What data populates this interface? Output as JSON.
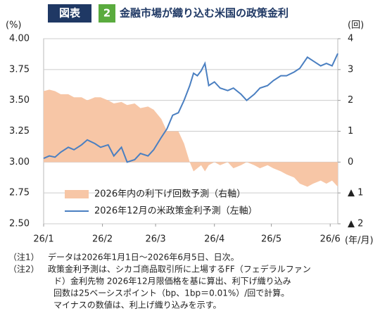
{
  "chart_data": {
    "type": "line",
    "figure_label": "図表",
    "figure_number": "2",
    "title": "金融市場が織り込む米国の政策金利",
    "y_unit": "(%)",
    "y2_unit": "(回)",
    "x_unit": "(年/月)",
    "xlim": [
      0,
      155
    ],
    "xticks": [
      {
        "value": 0,
        "label": "26/1"
      },
      {
        "value": 31,
        "label": "26/2"
      },
      {
        "value": 59,
        "label": "26/3"
      },
      {
        "value": 90,
        "label": "26/4"
      },
      {
        "value": 120,
        "label": "26/5"
      },
      {
        "value": 151,
        "label": "26/6"
      }
    ],
    "ylim": [
      2.5,
      4.0
    ],
    "yticks": [
      {
        "value": 2.5,
        "label": "2.50"
      },
      {
        "value": 2.75,
        "label": "2.75"
      },
      {
        "value": 3.0,
        "label": "3.00"
      },
      {
        "value": 3.25,
        "label": "3.25"
      },
      {
        "value": 3.5,
        "label": "3.50"
      },
      {
        "value": 3.75,
        "label": "3.75"
      },
      {
        "value": 4.0,
        "label": "4.00"
      }
    ],
    "y2lim": [
      -2,
      4
    ],
    "y2ticks": [
      {
        "value": -2,
        "label": "▲ 2"
      },
      {
        "value": -1,
        "label": "▲ 1"
      },
      0,
      1,
      2,
      3,
      4
    ],
    "grid": true,
    "legend": "lower-left",
    "x": [
      0,
      3,
      6,
      9,
      13,
      16,
      20,
      23,
      27,
      30,
      34,
      37,
      41,
      44,
      48,
      51,
      55,
      58,
      62,
      65,
      68,
      71,
      74,
      77,
      79,
      81,
      83,
      85,
      87,
      90,
      93,
      97,
      100,
      104,
      107,
      111,
      114,
      118,
      121,
      125,
      128,
      132,
      135,
      139,
      142,
      146,
      149,
      152,
      155
    ],
    "series": [
      {
        "name": "2026年内の利下げ回数予測（右軸）",
        "type": "area",
        "axis": "y2",
        "color": "#f7c6a6",
        "values": [
          2.3,
          2.35,
          2.3,
          2.2,
          2.2,
          2.1,
          2.1,
          2.0,
          2.1,
          2.1,
          2.0,
          1.9,
          1.95,
          1.85,
          1.9,
          1.75,
          1.8,
          1.7,
          1.4,
          1.0,
          1.0,
          1.0,
          0.6,
          0,
          -0.3,
          -0.2,
          -0.1,
          -0.3,
          -0.1,
          0,
          -0.1,
          0,
          -0.2,
          -0.1,
          0,
          -0.1,
          -0.2,
          -0.1,
          -0.2,
          -0.3,
          -0.4,
          -0.5,
          -0.7,
          -0.8,
          -0.7,
          -0.6,
          -0.7,
          -0.6,
          -0.8
        ]
      },
      {
        "name": "2026年12月の米政策金利予測（左軸）",
        "type": "line",
        "axis": "y",
        "color": "#4a7fc1",
        "values": [
          3.03,
          3.05,
          3.04,
          3.08,
          3.12,
          3.1,
          3.14,
          3.18,
          3.15,
          3.12,
          3.14,
          3.05,
          3.12,
          3.0,
          3.02,
          3.07,
          3.05,
          3.1,
          3.2,
          3.27,
          3.38,
          3.4,
          3.5,
          3.62,
          3.72,
          3.7,
          3.74,
          3.8,
          3.62,
          3.65,
          3.6,
          3.58,
          3.6,
          3.55,
          3.5,
          3.55,
          3.6,
          3.62,
          3.66,
          3.7,
          3.7,
          3.73,
          3.76,
          3.85,
          3.82,
          3.78,
          3.8,
          3.78,
          3.88
        ]
      }
    ],
    "notes": [
      {
        "label": "（注1）",
        "lines": [
          "データは2026年1月1日～2026年6月5日、日次。"
        ]
      },
      {
        "label": "（注2）",
        "lines": [
          "政策金利予測は、シカゴ商品取引所に上場するFF（フェデラルファン",
          "ド）金利先物 2026年12月限価格を基に算出、利下げ織り込み",
          "回数は25ベーシスポイント（bp、1bp＝0.01%）/回で計算。",
          "マイナスの数値は、利上げ織り込みを示す。"
        ]
      }
    ]
  }
}
